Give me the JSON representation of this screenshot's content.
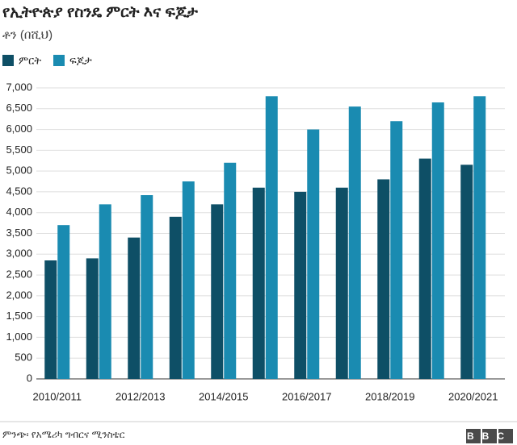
{
  "chart_data": {
    "type": "bar",
    "title": "የኢትዮጵያ የስንዴ ምርት እና ፍጆታ",
    "subtitle": "ቶን (በሺህ)",
    "source": "ምንጭ፡ የአሜሪካ ግብርና ሚንስቴር",
    "logo": "BBC",
    "categories": [
      "2010/2011",
      null,
      "2012/2013",
      null,
      "2014/2015",
      null,
      "2016/2017",
      null,
      "2018/2019",
      null,
      "2020/2021"
    ],
    "series": [
      {
        "name": "ምርት",
        "color": "#0e4f66",
        "values": [
          2850,
          2900,
          3400,
          3900,
          4200,
          4600,
          4500,
          4600,
          4800,
          5300,
          5150
        ]
      },
      {
        "name": "ፍጆታ",
        "color": "#1a8bb1",
        "values": [
          3700,
          4200,
          4420,
          4750,
          5200,
          6800,
          6000,
          6550,
          6200,
          6650,
          6800
        ]
      }
    ],
    "ylim": [
      0,
      7000
    ],
    "yticks": [
      0,
      {
        "value": 500,
        "label": "500"
      },
      {
        "value": 1000,
        "label": "1,000"
      },
      {
        "value": 1500,
        "label": "1,500"
      },
      {
        "value": 2000,
        "label": "2,000"
      },
      {
        "value": 2500,
        "label": "2,500"
      },
      {
        "value": 3000,
        "label": "3,000"
      },
      {
        "value": 3500,
        "label": "3,500"
      },
      {
        "value": 4000,
        "label": "4,000"
      },
      {
        "value": 4500,
        "label": "4,500"
      },
      {
        "value": 5000,
        "label": "5,000"
      },
      {
        "value": 5500,
        "label": "5,500"
      },
      {
        "value": 6000,
        "label": "6,000"
      },
      {
        "value": 6500,
        "label": "6,500"
      },
      {
        "value": 7000,
        "label": "7,000"
      }
    ],
    "grid": true,
    "legend": "top-left"
  }
}
